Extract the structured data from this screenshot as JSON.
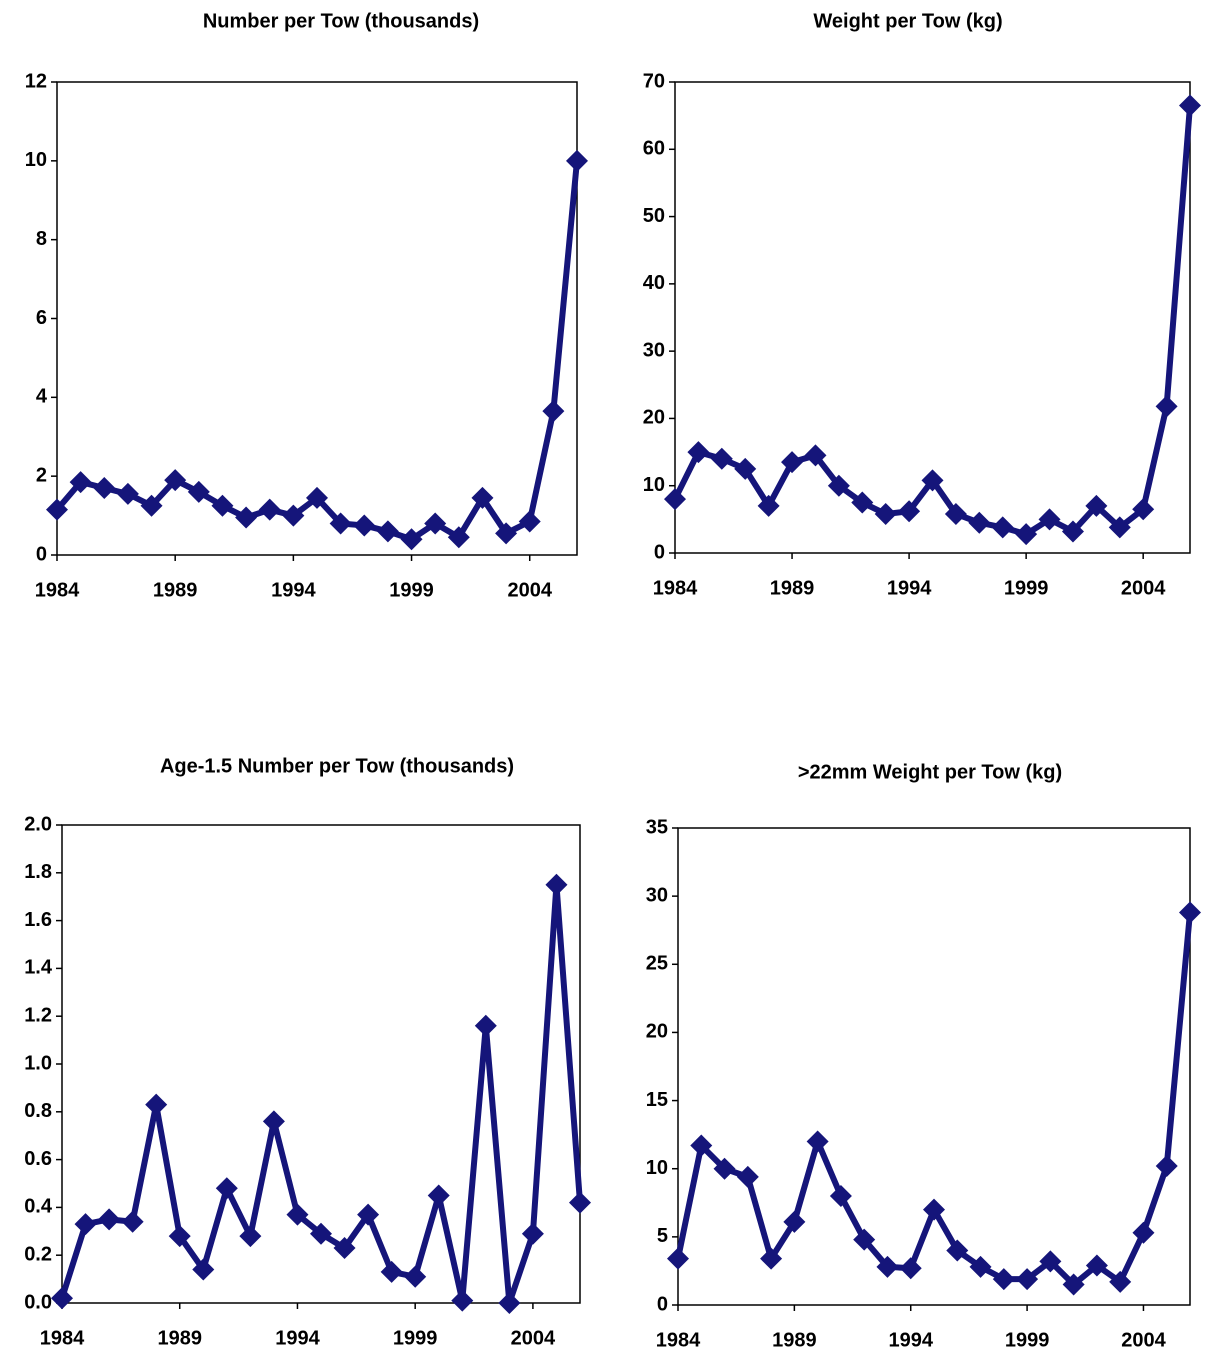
{
  "chart_data": [
    {
      "type": "line",
      "title": "Number per Tow (thousands)",
      "x": [
        1984,
        1985,
        1986,
        1987,
        1988,
        1989,
        1990,
        1991,
        1992,
        1993,
        1994,
        1995,
        1996,
        1997,
        1998,
        1999,
        2000,
        2001,
        2002,
        2003,
        2004,
        2005,
        2006
      ],
      "xlim": [
        1984,
        2006
      ],
      "xticks": [
        1984,
        1989,
        1994,
        1999,
        2004
      ],
      "ylim": [
        0,
        12
      ],
      "yticks": [
        0,
        2,
        4,
        6,
        8,
        10,
        12
      ],
      "series": [
        {
          "color": "#15157a",
          "values": [
            1.15,
            1.85,
            1.7,
            1.55,
            1.25,
            1.9,
            1.6,
            1.25,
            0.95,
            1.15,
            1.0,
            1.45,
            0.8,
            0.75,
            0.6,
            0.4,
            0.8,
            0.45,
            1.45,
            0.55,
            0.85,
            3.65,
            10.0
          ]
        }
      ]
    },
    {
      "type": "line",
      "title": "Weight per Tow (kg)",
      "x": [
        1984,
        1985,
        1986,
        1987,
        1988,
        1989,
        1990,
        1991,
        1992,
        1993,
        1994,
        1995,
        1996,
        1997,
        1998,
        1999,
        2000,
        2001,
        2002,
        2003,
        2004,
        2005,
        2006
      ],
      "xlim": [
        1984,
        2006
      ],
      "xticks": [
        1984,
        1989,
        1994,
        1999,
        2004
      ],
      "ylim": [
        0,
        70
      ],
      "yticks": [
        0,
        10,
        20,
        30,
        40,
        50,
        60,
        70
      ],
      "series": [
        {
          "color": "#15157a",
          "values": [
            8,
            15,
            14,
            12.5,
            7,
            13.5,
            14.5,
            10,
            7.5,
            5.8,
            6.2,
            10.8,
            5.8,
            4.5,
            3.8,
            2.8,
            5,
            3.2,
            7,
            3.8,
            6.5,
            21.8,
            66.5
          ]
        }
      ]
    },
    {
      "type": "line",
      "title": "Age-1.5 Number per Tow (thousands)",
      "x": [
        1984,
        1985,
        1986,
        1987,
        1988,
        1989,
        1990,
        1991,
        1992,
        1993,
        1994,
        1995,
        1996,
        1997,
        1998,
        1999,
        2000,
        2001,
        2002,
        2003,
        2004,
        2005,
        2006
      ],
      "xlim": [
        1984,
        2006
      ],
      "xticks": [
        1984,
        1989,
        1994,
        1999,
        2004
      ],
      "ylim": [
        0,
        2
      ],
      "yticks": [
        {
          "value": 0,
          "label": "0.0"
        },
        0.2,
        0.4,
        0.6,
        0.8,
        {
          "value": 1,
          "label": "1.0"
        },
        1.2,
        1.4,
        1.6,
        1.8,
        {
          "value": 2,
          "label": "2.0"
        }
      ],
      "series": [
        {
          "color": "#15157a",
          "values": [
            0.02,
            0.33,
            0.35,
            0.34,
            0.83,
            0.28,
            0.14,
            0.48,
            0.28,
            0.76,
            0.37,
            0.29,
            0.23,
            0.37,
            0.13,
            0.11,
            0.45,
            0.01,
            1.16,
            0.0,
            0.29,
            1.75,
            0.42
          ]
        }
      ]
    },
    {
      "type": "line",
      "title": ">22mm Weight per Tow (kg)",
      "x": [
        1984,
        1985,
        1986,
        1987,
        1988,
        1989,
        1990,
        1991,
        1992,
        1993,
        1994,
        1995,
        1996,
        1997,
        1998,
        1999,
        2000,
        2001,
        2002,
        2003,
        2004,
        2005,
        2006
      ],
      "xlim": [
        1984,
        2006
      ],
      "xticks": [
        1984,
        1989,
        1994,
        1999,
        2004
      ],
      "ylim": [
        0,
        35
      ],
      "yticks": [
        0,
        5,
        10,
        15,
        20,
        25,
        30,
        35
      ],
      "series": [
        {
          "color": "#15157a",
          "values": [
            3.4,
            11.7,
            10,
            9.4,
            3.4,
            6.1,
            12,
            8,
            4.8,
            2.8,
            2.7,
            7,
            4,
            2.8,
            1.9,
            1.9,
            3.2,
            1.5,
            2.9,
            1.7,
            5.3,
            10.2,
            28.8
          ]
        }
      ]
    }
  ]
}
